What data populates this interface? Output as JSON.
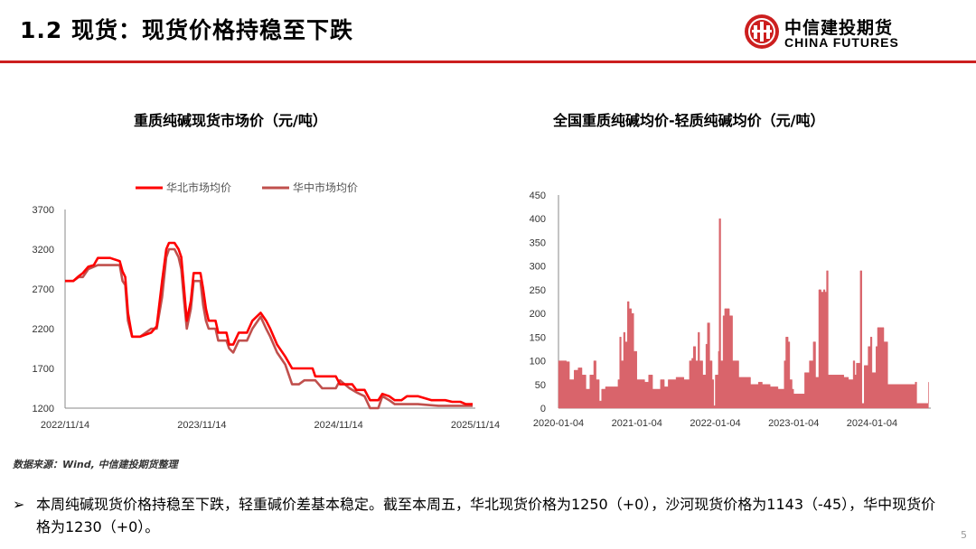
{
  "header": {
    "title": "1.2 现货：现货价格持稳至下跌",
    "logo_cn": "中信建投期货",
    "logo_en": "CHINA FUTURES",
    "brand_color": "#cc1f1f"
  },
  "left_chart": {
    "title": "重质纯碱现货市场价（元/吨）"
  },
  "right_chart": {
    "title": "全国重质纯碱均价-轻质纯碱均价（元/吨）"
  },
  "chart_data": [
    {
      "type": "line",
      "x_ticks": [
        "2022/11/14",
        "2023/11/14",
        "2024/11/14",
        "2025/11/14"
      ],
      "y_ticks": [
        1200,
        1700,
        2200,
        2700,
        3200,
        3700
      ],
      "ylim": [
        1200,
        3700
      ],
      "legend_position": "top",
      "series": [
        {
          "name": "华北市场均价",
          "color": "#ff0000",
          "points": [
            [
              2022.87,
              2800
            ],
            [
              2022.93,
              2800
            ],
            [
              2022.97,
              2860
            ],
            [
              2023.0,
              2900
            ],
            [
              2023.04,
              2980
            ],
            [
              2023.08,
              3000
            ],
            [
              2023.11,
              3090
            ],
            [
              2023.2,
              3090
            ],
            [
              2023.27,
              3050
            ],
            [
              2023.29,
              2920
            ],
            [
              2023.31,
              2850
            ],
            [
              2023.33,
              2400
            ],
            [
              2023.36,
              2100
            ],
            [
              2023.42,
              2100
            ],
            [
              2023.5,
              2150
            ],
            [
              2023.54,
              2230
            ],
            [
              2023.58,
              2800
            ],
            [
              2023.61,
              3200
            ],
            [
              2023.63,
              3280
            ],
            [
              2023.67,
              3280
            ],
            [
              2023.7,
              3200
            ],
            [
              2023.72,
              3100
            ],
            [
              2023.74,
              2700
            ],
            [
              2023.76,
              2300
            ],
            [
              2023.79,
              2550
            ],
            [
              2023.81,
              2900
            ],
            [
              2023.86,
              2900
            ],
            [
              2023.88,
              2700
            ],
            [
              2023.9,
              2450
            ],
            [
              2023.92,
              2300
            ],
            [
              2023.97,
              2300
            ],
            [
              2023.99,
              2150
            ],
            [
              2024.05,
              2150
            ],
            [
              2024.07,
              2000
            ],
            [
              2024.1,
              2000
            ],
            [
              2024.14,
              2150
            ],
            [
              2024.2,
              2150
            ],
            [
              2024.24,
              2300
            ],
            [
              2024.3,
              2400
            ],
            [
              2024.34,
              2300
            ],
            [
              2024.37,
              2200
            ],
            [
              2024.42,
              2000
            ],
            [
              2024.48,
              1850
            ],
            [
              2024.53,
              1700
            ],
            [
              2024.68,
              1700
            ],
            [
              2024.7,
              1600
            ],
            [
              2024.85,
              1600
            ],
            [
              2024.88,
              1500
            ],
            [
              2024.97,
              1500
            ],
            [
              2025.0,
              1430
            ],
            [
              2025.06,
              1430
            ],
            [
              2025.1,
              1300
            ],
            [
              2025.16,
              1300
            ],
            [
              2025.19,
              1380
            ],
            [
              2025.24,
              1350
            ],
            [
              2025.28,
              1300
            ],
            [
              2025.33,
              1300
            ],
            [
              2025.37,
              1350
            ],
            [
              2025.45,
              1350
            ],
            [
              2025.55,
              1300
            ],
            [
              2025.6,
              1300
            ],
            [
              2025.65,
              1300
            ],
            [
              2025.7,
              1280
            ],
            [
              2025.76,
              1280
            ],
            [
              2025.8,
              1250
            ],
            [
              2025.85,
              1250
            ]
          ]
        },
        {
          "name": "华中市场均价",
          "color": "#c0504d",
          "points": [
            [
              2022.87,
              2800
            ],
            [
              2022.93,
              2800
            ],
            [
              2022.97,
              2850
            ],
            [
              2023.0,
              2850
            ],
            [
              2023.04,
              2950
            ],
            [
              2023.08,
              2980
            ],
            [
              2023.11,
              3000
            ],
            [
              2023.2,
              3000
            ],
            [
              2023.27,
              3000
            ],
            [
              2023.29,
              2800
            ],
            [
              2023.31,
              2750
            ],
            [
              2023.33,
              2300
            ],
            [
              2023.36,
              2100
            ],
            [
              2023.42,
              2100
            ],
            [
              2023.5,
              2200
            ],
            [
              2023.54,
              2200
            ],
            [
              2023.58,
              2600
            ],
            [
              2023.61,
              3100
            ],
            [
              2023.63,
              3200
            ],
            [
              2023.67,
              3200
            ],
            [
              2023.7,
              3100
            ],
            [
              2023.72,
              2950
            ],
            [
              2023.74,
              2550
            ],
            [
              2023.76,
              2200
            ],
            [
              2023.79,
              2450
            ],
            [
              2023.81,
              2800
            ],
            [
              2023.86,
              2800
            ],
            [
              2023.88,
              2500
            ],
            [
              2023.9,
              2300
            ],
            [
              2023.92,
              2200
            ],
            [
              2023.97,
              2200
            ],
            [
              2023.99,
              2050
            ],
            [
              2024.05,
              2050
            ],
            [
              2024.07,
              1950
            ],
            [
              2024.1,
              1900
            ],
            [
              2024.14,
              2050
            ],
            [
              2024.2,
              2050
            ],
            [
              2024.24,
              2200
            ],
            [
              2024.3,
              2350
            ],
            [
              2024.34,
              2200
            ],
            [
              2024.37,
              2100
            ],
            [
              2024.42,
              1900
            ],
            [
              2024.48,
              1750
            ],
            [
              2024.53,
              1500
            ],
            [
              2024.58,
              1500
            ],
            [
              2024.62,
              1550
            ],
            [
              2024.7,
              1550
            ],
            [
              2024.75,
              1450
            ],
            [
              2024.85,
              1450
            ],
            [
              2024.88,
              1550
            ],
            [
              2024.95,
              1450
            ],
            [
              2025.0,
              1400
            ],
            [
              2025.06,
              1350
            ],
            [
              2025.1,
              1200
            ],
            [
              2025.16,
              1200
            ],
            [
              2025.19,
              1350
            ],
            [
              2025.24,
              1300
            ],
            [
              2025.28,
              1250
            ],
            [
              2025.4,
              1250
            ],
            [
              2025.45,
              1250
            ],
            [
              2025.6,
              1230
            ],
            [
              2025.7,
              1230
            ],
            [
              2025.85,
              1230
            ]
          ]
        }
      ]
    },
    {
      "type": "area",
      "x_ticks": [
        "2020-01-04",
        "2021-01-04",
        "2022-01-04",
        "2023-01-04",
        "2024-01-04"
      ],
      "y_ticks": [
        0,
        50,
        100,
        150,
        200,
        250,
        300,
        350,
        400,
        450
      ],
      "ylim": [
        0,
        450
      ],
      "grid": false,
      "series": [
        {
          "name": "",
          "color": "#d9646b",
          "points": [
            [
              2020.0,
              100
            ],
            [
              2020.1,
              98
            ],
            [
              2020.14,
              60
            ],
            [
              2020.2,
              80
            ],
            [
              2020.25,
              85
            ],
            [
              2020.3,
              70
            ],
            [
              2020.35,
              40
            ],
            [
              2020.4,
              70
            ],
            [
              2020.45,
              100
            ],
            [
              2020.48,
              60
            ],
            [
              2020.52,
              15
            ],
            [
              2020.55,
              40
            ],
            [
              2020.6,
              45
            ],
            [
              2020.7,
              45
            ],
            [
              2020.76,
              60
            ],
            [
              2020.78,
              150
            ],
            [
              2020.8,
              100
            ],
            [
              2020.83,
              160
            ],
            [
              2020.85,
              140
            ],
            [
              2020.88,
              225
            ],
            [
              2020.9,
              210
            ],
            [
              2020.93,
              200
            ],
            [
              2020.96,
              120
            ],
            [
              2021.0,
              60
            ],
            [
              2021.1,
              55
            ],
            [
              2021.15,
              70
            ],
            [
              2021.2,
              40
            ],
            [
              2021.3,
              60
            ],
            [
              2021.35,
              45
            ],
            [
              2021.4,
              60
            ],
            [
              2021.5,
              65
            ],
            [
              2021.6,
              60
            ],
            [
              2021.67,
              100
            ],
            [
              2021.7,
              105
            ],
            [
              2021.72,
              130
            ],
            [
              2021.75,
              100
            ],
            [
              2021.78,
              160
            ],
            [
              2021.8,
              100
            ],
            [
              2021.84,
              70
            ],
            [
              2021.88,
              135
            ],
            [
              2021.9,
              180
            ],
            [
              2021.93,
              100
            ],
            [
              2021.96,
              60
            ],
            [
              2021.98,
              5
            ],
            [
              2022.0,
              70
            ],
            [
              2022.04,
              120
            ],
            [
              2022.05,
              400
            ],
            [
              2022.07,
              100
            ],
            [
              2022.1,
              195
            ],
            [
              2022.12,
              210
            ],
            [
              2022.18,
              195
            ],
            [
              2022.22,
              100
            ],
            [
              2022.3,
              65
            ],
            [
              2022.4,
              65
            ],
            [
              2022.45,
              50
            ],
            [
              2022.55,
              55
            ],
            [
              2022.6,
              50
            ],
            [
              2022.7,
              45
            ],
            [
              2022.8,
              40
            ],
            [
              2022.88,
              100
            ],
            [
              2022.9,
              150
            ],
            [
              2022.93,
              140
            ],
            [
              2022.95,
              60
            ],
            [
              2022.98,
              40
            ],
            [
              2023.0,
              30
            ],
            [
              2023.1,
              30
            ],
            [
              2023.14,
              75
            ],
            [
              2023.2,
              100
            ],
            [
              2023.25,
              140
            ],
            [
              2023.28,
              65
            ],
            [
              2023.32,
              250
            ],
            [
              2023.35,
              245
            ],
            [
              2023.38,
              250
            ],
            [
              2023.4,
              245
            ],
            [
              2023.42,
              290
            ],
            [
              2023.44,
              70
            ],
            [
              2023.5,
              70
            ],
            [
              2023.6,
              70
            ],
            [
              2023.64,
              65
            ],
            [
              2023.7,
              60
            ],
            [
              2023.76,
              100
            ],
            [
              2023.78,
              70
            ],
            [
              2023.8,
              95
            ],
            [
              2023.85,
              290
            ],
            [
              2023.87,
              10
            ],
            [
              2023.9,
              90
            ],
            [
              2023.95,
              130
            ],
            [
              2023.98,
              150
            ],
            [
              2024.0,
              75
            ],
            [
              2024.05,
              130
            ],
            [
              2024.07,
              170
            ],
            [
              2024.12,
              170
            ],
            [
              2024.15,
              140
            ],
            [
              2024.2,
              50
            ],
            [
              2024.3,
              50
            ],
            [
              2024.45,
              50
            ],
            [
              2024.55,
              55
            ],
            [
              2024.57,
              10
            ],
            [
              2024.7,
              10
            ],
            [
              2024.72,
              55
            ]
          ]
        }
      ]
    }
  ],
  "source": "数据来源：Wind, 中信建投期货整理",
  "bullet": {
    "marker": "➢",
    "text": "本周纯碱现货价格持稳至下跌，轻重碱价差基本稳定。截至本周五，华北现货价格为1250（+0），沙河现货价格为1143（-45），华中现货价格为1230（+0）。"
  },
  "page_number": "5"
}
